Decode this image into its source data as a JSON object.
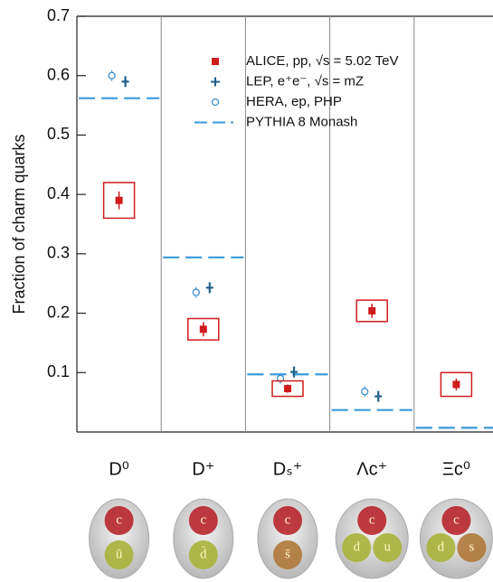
{
  "chart_data": {
    "type": "scatter",
    "y_label": "Fraction of charm quarks",
    "categories": [
      "D⁰",
      "D⁺",
      "Dₛ⁺",
      "Λc⁺",
      "Ξc⁰"
    ],
    "ylim": [
      0,
      0.7
    ],
    "yticks": [
      0.1,
      0.2,
      0.3,
      0.4,
      0.5,
      0.6,
      0.7
    ],
    "series": [
      {
        "name": "ALICE, pp, √s = 5.02 TeV",
        "color": "#d01c1c",
        "marker": "square",
        "values": [
          0.39,
          0.173,
          0.073,
          0.204,
          0.08
        ],
        "errors": [
          0.015,
          0.012,
          0.007,
          0.012,
          0.01
        ],
        "sys_errors": [
          0.03,
          0.018,
          0.013,
          0.018,
          0.02
        ]
      },
      {
        "name": "LEP, e⁺e⁻, √s = mZ",
        "color": "#1f5f8b",
        "marker": "plus",
        "values": [
          0.59,
          0.243,
          0.101,
          0.06,
          null
        ]
      },
      {
        "name": "HERA, ep, PHP",
        "color": "#3a8fd0",
        "marker": "open-circle",
        "values": [
          0.6,
          0.235,
          0.09,
          0.068,
          null
        ]
      },
      {
        "name": "PYTHIA 8 Monash",
        "color": "#3a9ad9",
        "marker": "dash",
        "values": [
          0.562,
          0.294,
          0.097,
          0.037,
          0.007
        ]
      }
    ],
    "annotations": [
      [
        "c",
        "ū"
      ],
      [
        "c",
        "d̄"
      ],
      [
        "c",
        "s̄"
      ],
      [
        "c",
        "d",
        "u"
      ],
      [
        "c",
        "d",
        "s"
      ]
    ]
  }
}
